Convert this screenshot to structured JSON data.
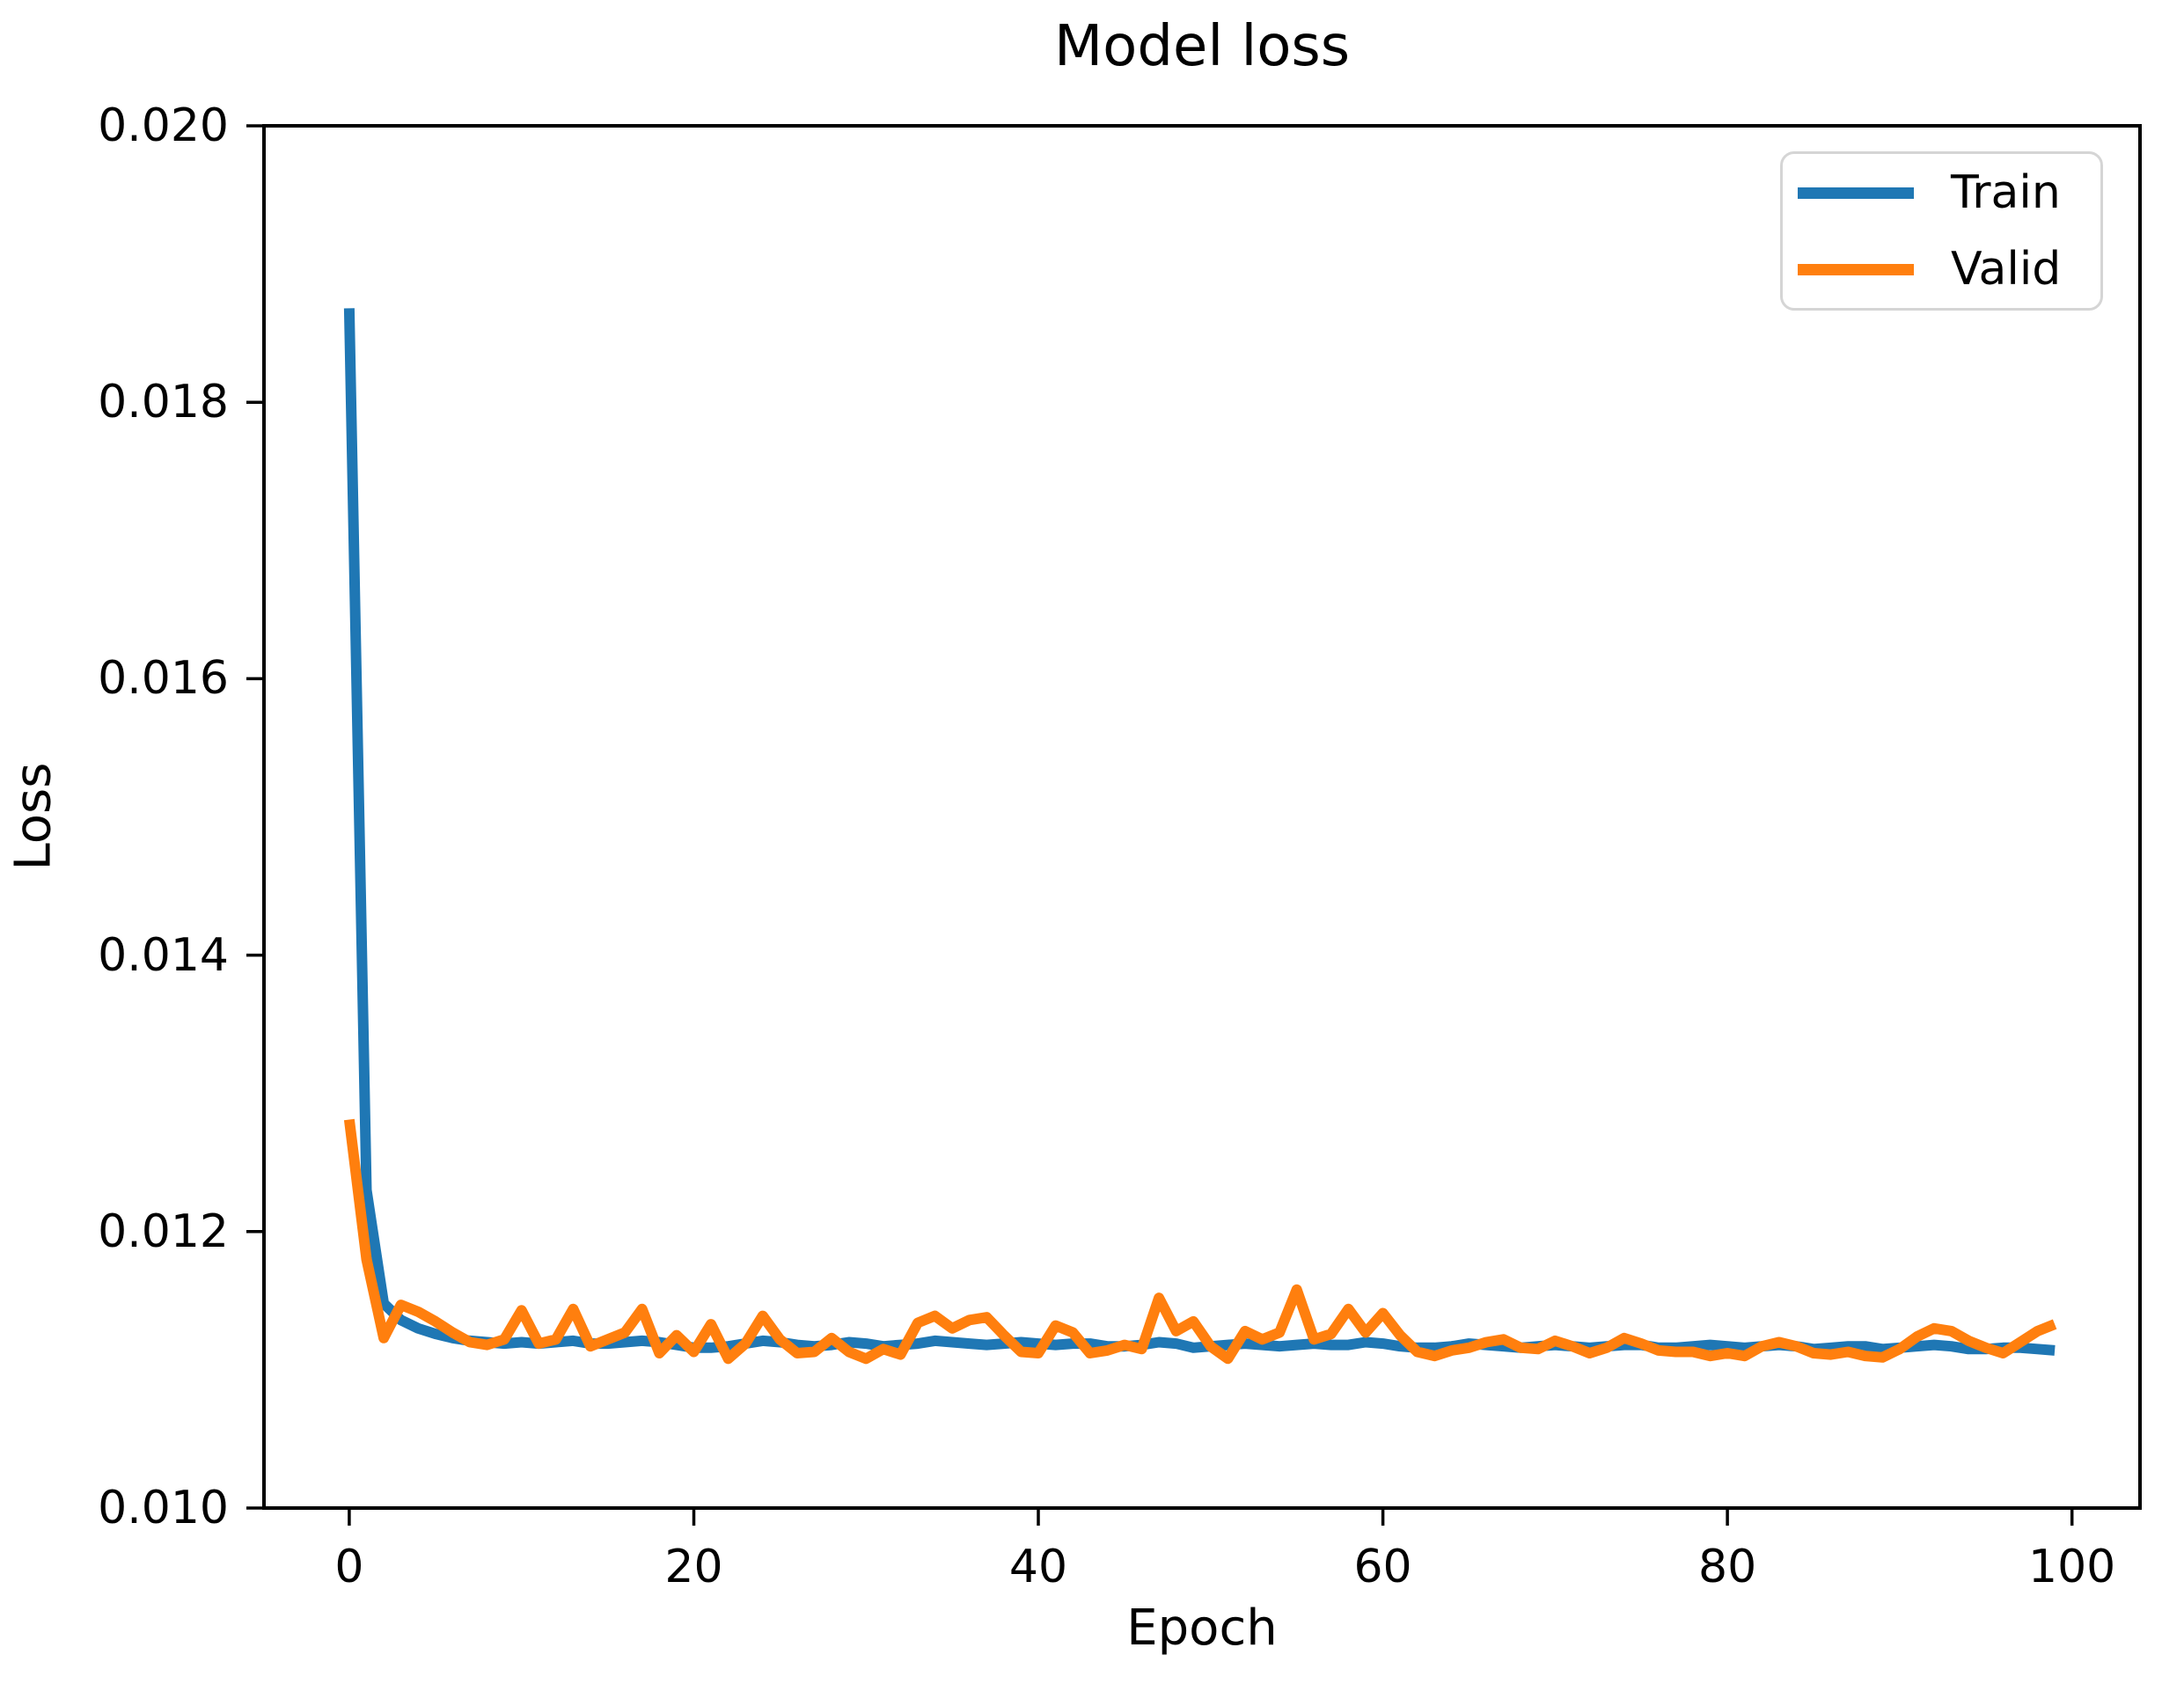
{
  "title": "Model loss",
  "legend": {
    "entries": [
      {
        "label": "Train",
        "color": "#1f77b4"
      },
      {
        "label": "Valid",
        "color": "#ff7f0e"
      }
    ]
  },
  "chart_data": {
    "type": "line",
    "title": "Model loss",
    "xlabel": "Epoch",
    "ylabel": "Loss",
    "xlim": [
      -4.95,
      103.95
    ],
    "ylim": [
      0.01,
      0.02
    ],
    "grid": false,
    "legend_position": "upper right",
    "x_ticks": {
      "values": [
        0,
        20,
        40,
        60,
        80,
        100
      ],
      "labels": [
        "0",
        "20",
        "40",
        "60",
        "80",
        "100"
      ]
    },
    "y_ticks": {
      "values": [
        0.01,
        0.012,
        0.014,
        0.016,
        0.018,
        0.02
      ],
      "labels": [
        "0.010",
        "0.012",
        "0.014",
        "0.016",
        "0.018",
        "0.020"
      ]
    },
    "x": [
      0,
      1,
      2,
      3,
      4,
      5,
      6,
      7,
      8,
      9,
      10,
      11,
      12,
      13,
      14,
      15,
      16,
      17,
      18,
      19,
      20,
      21,
      22,
      23,
      24,
      25,
      26,
      27,
      28,
      29,
      30,
      31,
      32,
      33,
      34,
      35,
      36,
      37,
      38,
      39,
      40,
      41,
      42,
      43,
      44,
      45,
      46,
      47,
      48,
      49,
      50,
      51,
      52,
      53,
      54,
      55,
      56,
      57,
      58,
      59,
      60,
      61,
      62,
      63,
      64,
      65,
      66,
      67,
      68,
      69,
      70,
      71,
      72,
      73,
      74,
      75,
      76,
      77,
      78,
      79,
      80,
      81,
      82,
      83,
      84,
      85,
      86,
      87,
      88,
      89,
      90,
      91,
      92,
      93,
      94,
      95,
      96,
      97,
      98,
      99
    ],
    "series": [
      {
        "name": "Train",
        "color": "#1f77b4",
        "line_width": 12,
        "values": [
          0.01868,
          0.0123,
          0.01148,
          0.01136,
          0.0113,
          0.01126,
          0.01123,
          0.01121,
          0.0112,
          0.01119,
          0.0112,
          0.01119,
          0.0112,
          0.01121,
          0.01119,
          0.01119,
          0.0112,
          0.01121,
          0.0112,
          0.01118,
          0.01116,
          0.01116,
          0.01117,
          0.01119,
          0.01121,
          0.0112,
          0.01118,
          0.01117,
          0.01118,
          0.0112,
          0.01119,
          0.01117,
          0.01118,
          0.01119,
          0.01121,
          0.0112,
          0.01119,
          0.01118,
          0.01119,
          0.0112,
          0.01119,
          0.01118,
          0.01119,
          0.01119,
          0.01117,
          0.01117,
          0.01118,
          0.0112,
          0.01119,
          0.01116,
          0.01117,
          0.01118,
          0.01119,
          0.01118,
          0.01117,
          0.01118,
          0.01119,
          0.01118,
          0.01118,
          0.0112,
          0.01119,
          0.01117,
          0.01116,
          0.01116,
          0.01117,
          0.01119,
          0.01118,
          0.01117,
          0.01116,
          0.01117,
          0.01118,
          0.01117,
          0.01116,
          0.01117,
          0.01118,
          0.01118,
          0.01116,
          0.01116,
          0.01117,
          0.01118,
          0.01117,
          0.01116,
          0.01117,
          0.01118,
          0.01117,
          0.01115,
          0.01116,
          0.01117,
          0.01117,
          0.01115,
          0.01116,
          0.01117,
          0.01118,
          0.01117,
          0.01115,
          0.01115,
          0.01116,
          0.01116,
          0.01115,
          0.01114
        ]
      },
      {
        "name": "Valid",
        "color": "#ff7f0e",
        "line_width": 12,
        "values": [
          0.01281,
          0.0118,
          0.01123,
          0.01147,
          0.01142,
          0.01135,
          0.01127,
          0.0112,
          0.01118,
          0.01122,
          0.01143,
          0.01119,
          0.01122,
          0.01144,
          0.01117,
          0.01122,
          0.01127,
          0.01144,
          0.01112,
          0.01125,
          0.01113,
          0.01133,
          0.01108,
          0.01119,
          0.01139,
          0.01122,
          0.01112,
          0.01113,
          0.01123,
          0.01113,
          0.01108,
          0.01115,
          0.01111,
          0.01134,
          0.01139,
          0.0113,
          0.01136,
          0.01138,
          0.01125,
          0.01113,
          0.01112,
          0.01132,
          0.01127,
          0.01112,
          0.01114,
          0.01118,
          0.01115,
          0.01152,
          0.01128,
          0.01135,
          0.01117,
          0.01108,
          0.01128,
          0.01122,
          0.01127,
          0.01158,
          0.01122,
          0.01126,
          0.01144,
          0.01127,
          0.01141,
          0.01125,
          0.01113,
          0.0111,
          0.01114,
          0.01116,
          0.0112,
          0.01122,
          0.01116,
          0.01115,
          0.01121,
          0.01117,
          0.01112,
          0.01116,
          0.01123,
          0.01119,
          0.01114,
          0.01113,
          0.01113,
          0.0111,
          0.01112,
          0.0111,
          0.01117,
          0.0112,
          0.01117,
          0.01112,
          0.01111,
          0.01113,
          0.0111,
          0.01109,
          0.01115,
          0.01124,
          0.0113,
          0.01128,
          0.01121,
          0.01116,
          0.01112,
          0.0112,
          0.01128,
          0.01133
        ]
      }
    ]
  }
}
